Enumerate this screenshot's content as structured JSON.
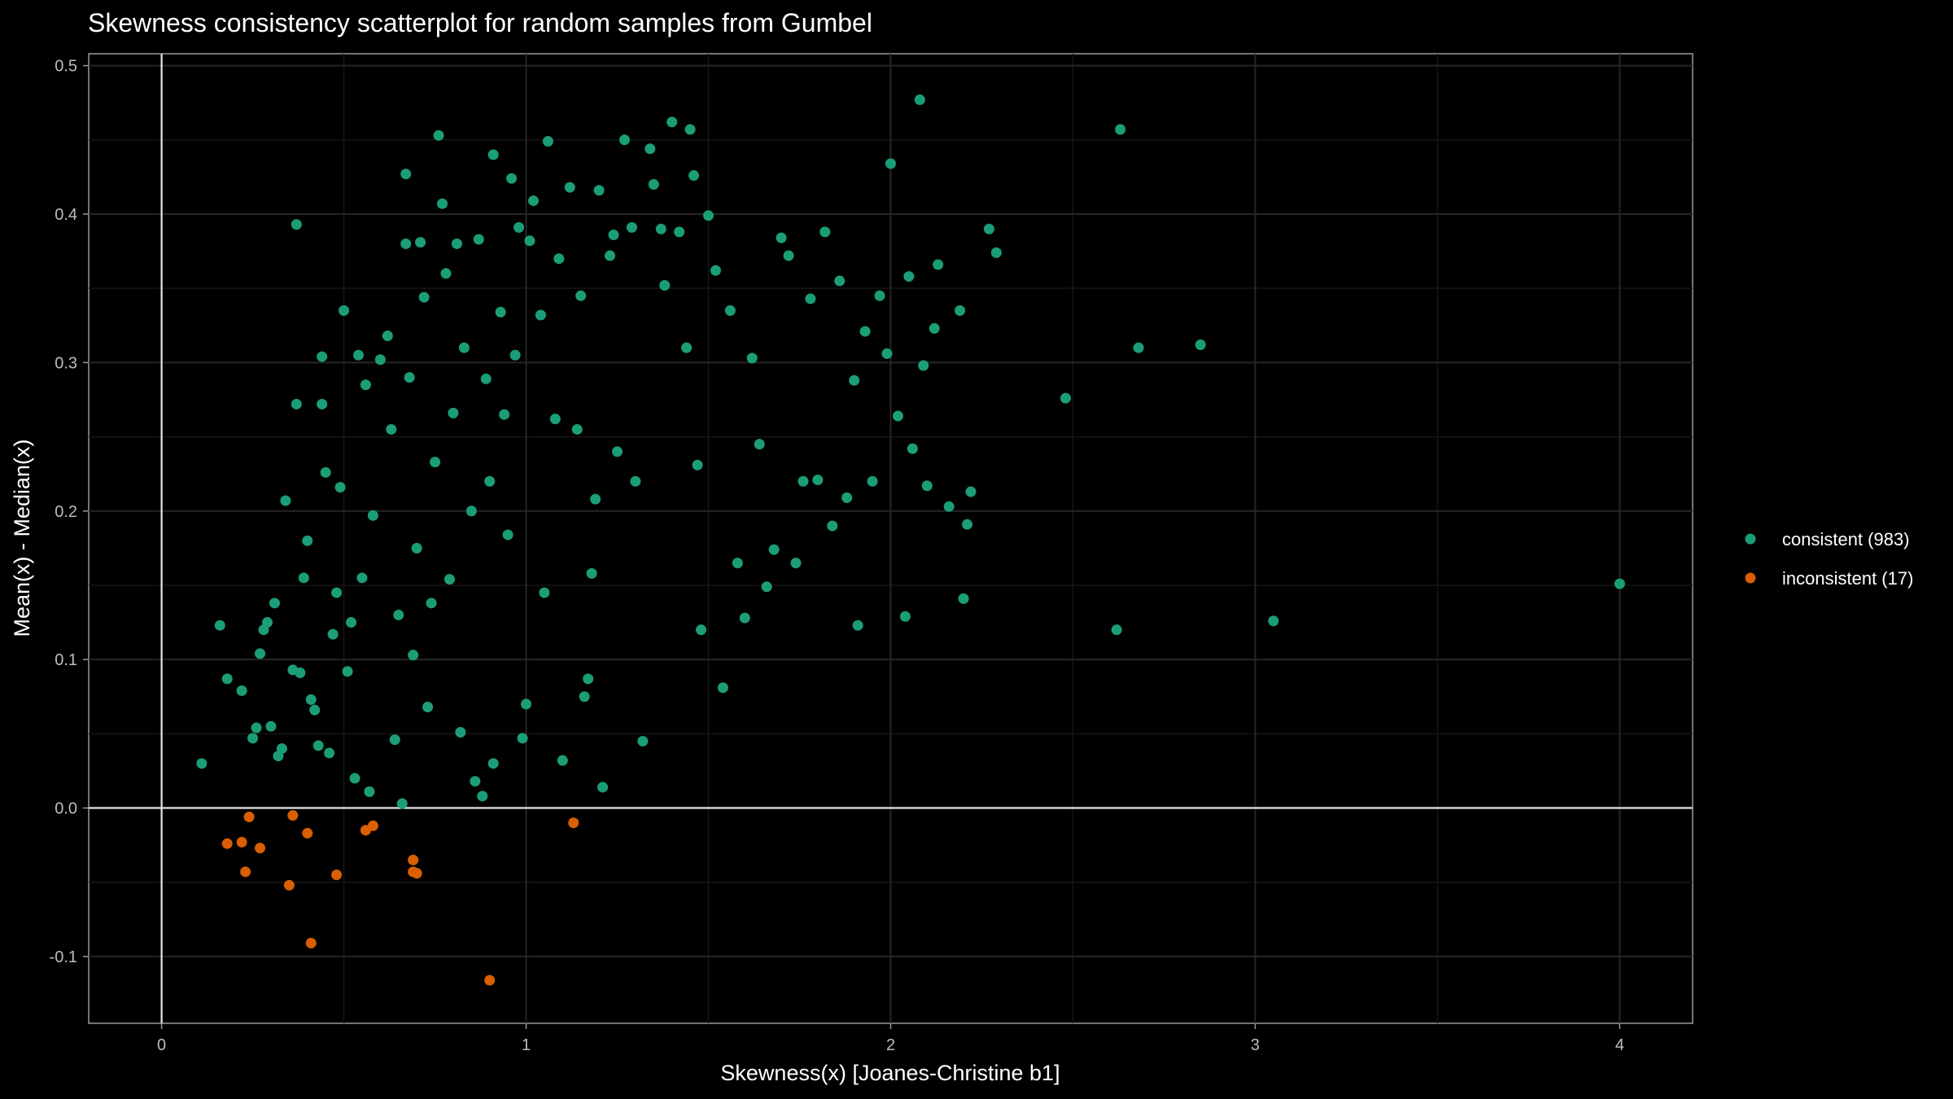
{
  "chart_data": {
    "type": "scatter",
    "title": "Skewness consistency scatterplot for random samples from Gumbel",
    "xlabel": "Skewness(x)  [Joanes-Christine b1]",
    "ylabel": "Mean(x) - Median(x)",
    "xlim": [
      -0.2,
      4.2
    ],
    "ylim": [
      -0.145,
      0.508
    ],
    "x_ticks": [
      0,
      1,
      2,
      3,
      4
    ],
    "y_ticks": [
      -0.1,
      0.0,
      0.1,
      0.2,
      0.3,
      0.4,
      0.5
    ],
    "x_tick_labels": [
      "0",
      "1",
      "2",
      "3",
      "4"
    ],
    "y_tick_labels": [
      "-0.1",
      "0.0",
      "0.1",
      "0.2",
      "0.3",
      "0.4",
      "0.5"
    ],
    "reference_lines": {
      "x": 0,
      "y": 0
    },
    "grid": true,
    "legend_position": "right",
    "series": [
      {
        "name": "consistent (983)",
        "color": "#1b9e77",
        "count_shown": 983,
        "points": [
          [
            0.11,
            0.03
          ],
          [
            0.16,
            0.123
          ],
          [
            0.18,
            0.087
          ],
          [
            0.22,
            0.079
          ],
          [
            0.25,
            0.047
          ],
          [
            0.26,
            0.054
          ],
          [
            0.27,
            0.104
          ],
          [
            0.28,
            0.12
          ],
          [
            0.29,
            0.125
          ],
          [
            0.3,
            0.055
          ],
          [
            0.31,
            0.138
          ],
          [
            0.32,
            0.035
          ],
          [
            0.33,
            0.04
          ],
          [
            0.34,
            0.207
          ],
          [
            0.36,
            0.093
          ],
          [
            0.37,
            0.272
          ],
          [
            0.37,
            0.393
          ],
          [
            0.38,
            0.091
          ],
          [
            0.39,
            0.155
          ],
          [
            0.4,
            0.18
          ],
          [
            0.41,
            0.073
          ],
          [
            0.42,
            0.066
          ],
          [
            0.43,
            0.042
          ],
          [
            0.44,
            0.304
          ],
          [
            0.44,
            0.272
          ],
          [
            0.45,
            0.226
          ],
          [
            0.46,
            0.037
          ],
          [
            0.47,
            0.117
          ],
          [
            0.48,
            0.145
          ],
          [
            0.49,
            0.216
          ],
          [
            0.5,
            0.335
          ],
          [
            0.51,
            0.092
          ],
          [
            0.52,
            0.125
          ],
          [
            0.53,
            0.02
          ],
          [
            0.54,
            0.305
          ],
          [
            0.55,
            0.155
          ],
          [
            0.56,
            0.285
          ],
          [
            0.57,
            0.011
          ],
          [
            0.58,
            0.197
          ],
          [
            0.6,
            0.302
          ],
          [
            0.62,
            0.318
          ],
          [
            0.63,
            0.255
          ],
          [
            0.64,
            0.046
          ],
          [
            0.65,
            0.13
          ],
          [
            0.66,
            0.003
          ],
          [
            0.67,
            0.427
          ],
          [
            0.67,
            0.38
          ],
          [
            0.68,
            0.29
          ],
          [
            0.69,
            0.103
          ],
          [
            0.7,
            0.175
          ],
          [
            0.71,
            0.381
          ],
          [
            0.72,
            0.344
          ],
          [
            0.73,
            0.068
          ],
          [
            0.74,
            0.138
          ],
          [
            0.75,
            0.233
          ],
          [
            0.76,
            0.453
          ],
          [
            0.77,
            0.407
          ],
          [
            0.78,
            0.36
          ],
          [
            0.79,
            0.154
          ],
          [
            0.8,
            0.266
          ],
          [
            0.81,
            0.38
          ],
          [
            0.82,
            0.051
          ],
          [
            0.83,
            0.31
          ],
          [
            0.85,
            0.2
          ],
          [
            0.86,
            0.018
          ],
          [
            0.87,
            0.383
          ],
          [
            0.88,
            0.008
          ],
          [
            0.89,
            0.289
          ],
          [
            0.9,
            0.22
          ],
          [
            0.91,
            0.44
          ],
          [
            0.91,
            0.03
          ],
          [
            0.93,
            0.334
          ],
          [
            0.94,
            0.265
          ],
          [
            0.95,
            0.184
          ],
          [
            0.96,
            0.424
          ],
          [
            0.97,
            0.305
          ],
          [
            0.98,
            0.391
          ],
          [
            0.99,
            0.047
          ],
          [
            1.0,
            0.07
          ],
          [
            1.01,
            0.382
          ],
          [
            1.02,
            0.409
          ],
          [
            1.04,
            0.332
          ],
          [
            1.05,
            0.145
          ],
          [
            1.06,
            0.449
          ],
          [
            1.08,
            0.262
          ],
          [
            1.09,
            0.37
          ],
          [
            1.1,
            0.032
          ],
          [
            1.12,
            0.418
          ],
          [
            1.14,
            0.255
          ],
          [
            1.15,
            0.345
          ],
          [
            1.16,
            0.075
          ],
          [
            1.17,
            0.087
          ],
          [
            1.18,
            0.158
          ],
          [
            1.19,
            0.208
          ],
          [
            1.2,
            0.416
          ],
          [
            1.21,
            0.014
          ],
          [
            1.23,
            0.372
          ],
          [
            1.24,
            0.386
          ],
          [
            1.25,
            0.24
          ],
          [
            1.27,
            0.45
          ],
          [
            1.29,
            0.391
          ],
          [
            1.3,
            0.22
          ],
          [
            1.32,
            0.045
          ],
          [
            1.34,
            0.444
          ],
          [
            1.35,
            0.42
          ],
          [
            1.37,
            0.39
          ],
          [
            1.38,
            0.352
          ],
          [
            1.4,
            0.462
          ],
          [
            1.42,
            0.388
          ],
          [
            1.44,
            0.31
          ],
          [
            1.45,
            0.457
          ],
          [
            1.46,
            0.426
          ],
          [
            1.47,
            0.231
          ],
          [
            1.48,
            0.12
          ],
          [
            1.5,
            0.399
          ],
          [
            1.52,
            0.362
          ],
          [
            1.54,
            0.081
          ],
          [
            1.56,
            0.335
          ],
          [
            1.58,
            0.165
          ],
          [
            1.6,
            0.128
          ],
          [
            1.62,
            0.303
          ],
          [
            1.64,
            0.245
          ],
          [
            1.66,
            0.149
          ],
          [
            1.68,
            0.174
          ],
          [
            1.7,
            0.384
          ],
          [
            1.72,
            0.372
          ],
          [
            1.74,
            0.165
          ],
          [
            1.76,
            0.22
          ],
          [
            1.78,
            0.343
          ],
          [
            1.8,
            0.221
          ],
          [
            1.82,
            0.388
          ],
          [
            1.84,
            0.19
          ],
          [
            1.86,
            0.355
          ],
          [
            1.88,
            0.209
          ],
          [
            1.9,
            0.288
          ],
          [
            1.91,
            0.123
          ],
          [
            1.93,
            0.321
          ],
          [
            1.95,
            0.22
          ],
          [
            1.97,
            0.345
          ],
          [
            1.99,
            0.306
          ],
          [
            2.0,
            0.434
          ],
          [
            2.02,
            0.264
          ],
          [
            2.04,
            0.129
          ],
          [
            2.05,
            0.358
          ],
          [
            2.06,
            0.242
          ],
          [
            2.08,
            0.477
          ],
          [
            2.09,
            0.298
          ],
          [
            2.1,
            0.217
          ],
          [
            2.12,
            0.323
          ],
          [
            2.13,
            0.366
          ],
          [
            2.16,
            0.203
          ],
          [
            2.19,
            0.335
          ],
          [
            2.2,
            0.141
          ],
          [
            2.21,
            0.191
          ],
          [
            2.22,
            0.213
          ],
          [
            2.27,
            0.39
          ],
          [
            2.29,
            0.374
          ],
          [
            2.48,
            0.276
          ],
          [
            2.62,
            0.12
          ],
          [
            2.63,
            0.457
          ],
          [
            2.68,
            0.31
          ],
          [
            2.85,
            0.312
          ],
          [
            3.05,
            0.126
          ],
          [
            4.0,
            0.151
          ]
        ]
      },
      {
        "name": "inconsistent (17)",
        "color": "#d95f02",
        "count_shown": 17,
        "points": [
          [
            0.18,
            -0.024
          ],
          [
            0.22,
            -0.023
          ],
          [
            0.23,
            -0.043
          ],
          [
            0.24,
            -0.006
          ],
          [
            0.27,
            -0.027
          ],
          [
            0.35,
            -0.052
          ],
          [
            0.36,
            -0.005
          ],
          [
            0.4,
            -0.017
          ],
          [
            0.41,
            -0.091
          ],
          [
            0.48,
            -0.045
          ],
          [
            0.56,
            -0.015
          ],
          [
            0.58,
            -0.012
          ],
          [
            0.69,
            -0.035
          ],
          [
            0.69,
            -0.043
          ],
          [
            0.9,
            -0.116
          ],
          [
            1.13,
            -0.01
          ],
          [
            0.7,
            -0.044
          ]
        ]
      }
    ]
  }
}
